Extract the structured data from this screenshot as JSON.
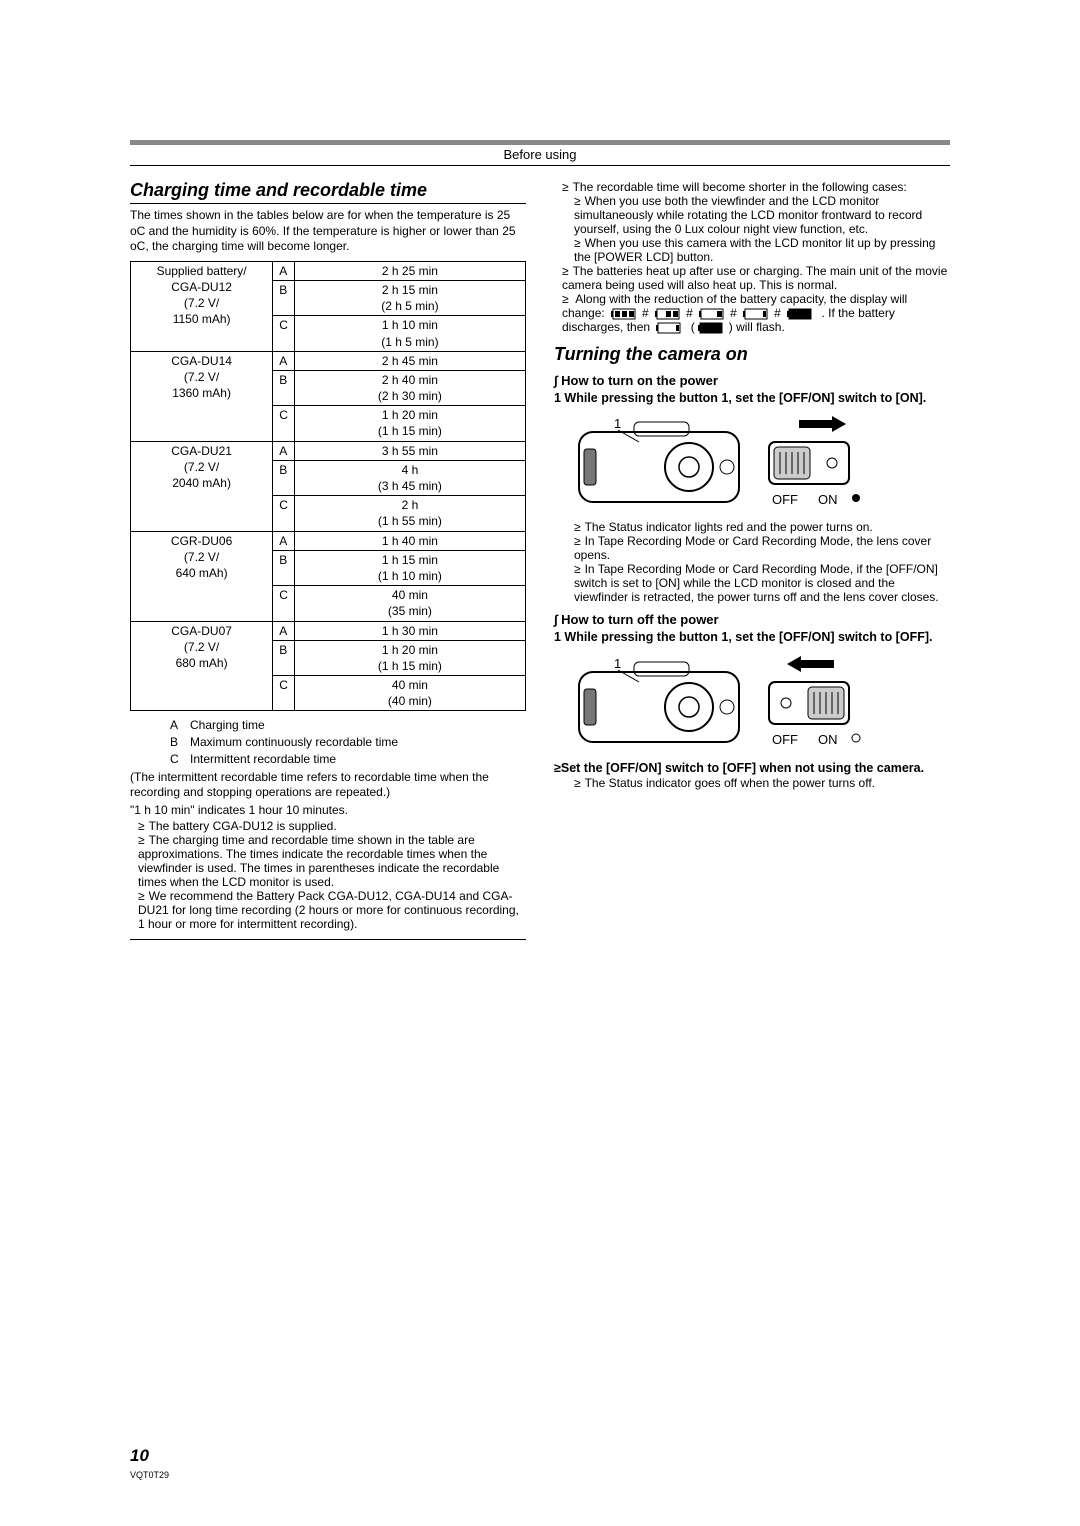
{
  "header": {
    "section": "Before using"
  },
  "left": {
    "title": "Charging time and recordable time",
    "intro": "The times shown in the tables below are for when the temperature is 25 oC and the humidity is 60%. If the temperature is higher or lower than 25 oC, the charging time will become longer.",
    "table": {
      "rows": [
        {
          "battery": "Supplied battery/\nCGA-DU12\n(7.2 V/\n1150 mAh)",
          "charge": "2 h 25 min",
          "cont": "2 h 15 min\n(2 h 5 min)",
          "inter": "1 h 10 min\n(1 h 5 min)"
        },
        {
          "battery": "CGA-DU14\n(7.2 V/\n1360 mAh)",
          "charge": "2 h 45 min",
          "cont": "2 h 40 min\n(2 h 30 min)",
          "inter": "1 h 20 min\n(1 h 15 min)"
        },
        {
          "battery": "CGA-DU21\n(7.2 V/\n2040 mAh)",
          "charge": "3 h 55 min",
          "cont": "4 h\n(3 h 45 min)",
          "inter": "2 h\n(1 h 55 min)"
        },
        {
          "battery": "CGR-DU06\n(7.2 V/\n640 mAh)",
          "charge": "1 h 40 min",
          "cont": "1 h 15 min\n(1 h 10 min)",
          "inter": "40 min\n(35 min)"
        },
        {
          "battery": "CGA-DU07\n(7.2 V/\n680 mAh)",
          "charge": "1 h 30 min",
          "cont": "1 h 20 min\n(1 h 15 min)",
          "inter": "40 min\n(40 min)"
        }
      ]
    },
    "legend": {
      "a": "Charging time",
      "b": "Maximum continuously recordable time",
      "c": "Intermittent recordable time"
    },
    "legend_note": "(The intermittent recordable time refers to recordable time when the recording and stopping operations are repeated.)",
    "note_format": "\"1 h 10 min\" indicates 1 hour 10 minutes.",
    "bullets": [
      "The battery CGA-DU12 is supplied.",
      "The charging time and recordable time shown in the table are approximations. The times indicate the recordable times when the viewfinder is used. The times in parentheses indicate the recordable times when the LCD monitor is used.",
      "We recommend the Battery Pack CGA-DU12, CGA-DU14 and CGA-DU21 for long time recording (2 hours or more for continuous recording, 1 hour or more for intermittent recording)."
    ]
  },
  "right": {
    "top_bullet": "The recordable time will become shorter in the following cases:",
    "sub_bullets": [
      "When you use both the viewfinder and the LCD monitor simultaneously while rotating the LCD monitor frontward to record yourself, using the 0 Lux colour night view function, etc.",
      "When you use this camera with the LCD monitor lit up by pressing the [POWER LCD] button."
    ],
    "heat_bullet": "The batteries heat up after use or charging. The main unit of the movie camera being used will also heat up. This is normal.",
    "battery_line_1": "Along with the reduction of the battery capacity, the display will change:",
    "battery_line_2": ". If the battery discharges, then",
    "battery_line_3": "will flash.",
    "turn_title": "Turning the camera on",
    "on": {
      "heading": "∫ How to turn on the power",
      "step": "1 While pressing the button 1, set the [OFF/ON] switch to [ON].",
      "off_label": "OFF",
      "on_label": "ON",
      "bullets": [
        "The Status indicator lights red and the power turns on.",
        "In Tape Recording Mode or Card Recording Mode, the lens cover opens.",
        "In Tape Recording Mode or Card Recording Mode, if the [OFF/ON] switch is set to [ON] while the LCD monitor is closed and the viewfinder is retracted, the power turns off and the lens cover closes."
      ]
    },
    "off": {
      "heading": "∫ How to turn off the power",
      "step": "1 While pressing the button 1, set the [OFF/ON] switch to [OFF].",
      "off_label": "OFF",
      "on_label": "ON",
      "note": "≥Set the [OFF/ON] switch to [OFF] when not using the camera.",
      "bullet": "The Status indicator goes off when the power turns off."
    }
  },
  "footer": {
    "page": "10",
    "docid": "VQT0T29"
  },
  "colors": {
    "rule": "#888888"
  }
}
